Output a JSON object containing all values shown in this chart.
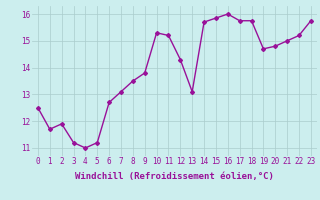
{
  "x": [
    0,
    1,
    2,
    3,
    4,
    5,
    6,
    7,
    8,
    9,
    10,
    11,
    12,
    13,
    14,
    15,
    16,
    17,
    18,
    19,
    20,
    21,
    22,
    23
  ],
  "y": [
    12.5,
    11.7,
    11.9,
    11.2,
    11.0,
    11.2,
    12.7,
    13.1,
    13.5,
    13.8,
    15.3,
    15.2,
    14.3,
    13.1,
    15.7,
    15.85,
    16.0,
    15.75,
    15.75,
    14.7,
    14.8,
    15.0,
    15.2,
    15.75
  ],
  "line_color": "#991199",
  "marker": "D",
  "marker_size": 2,
  "linewidth": 1.0,
  "bg_color": "#cceeee",
  "grid_color": "#aacccc",
  "xlabel": "Windchill (Refroidissement éolien,°C)",
  "xlabel_fontsize": 6.5,
  "xlabel_color": "#991199",
  "yticks": [
    11,
    12,
    13,
    14,
    15,
    16
  ],
  "xticks": [
    0,
    1,
    2,
    3,
    4,
    5,
    6,
    7,
    8,
    9,
    10,
    11,
    12,
    13,
    14,
    15,
    16,
    17,
    18,
    19,
    20,
    21,
    22,
    23
  ],
  "ylim": [
    10.7,
    16.3
  ],
  "xlim": [
    -0.5,
    23.5
  ],
  "tick_fontsize": 5.5,
  "tick_color": "#991199"
}
